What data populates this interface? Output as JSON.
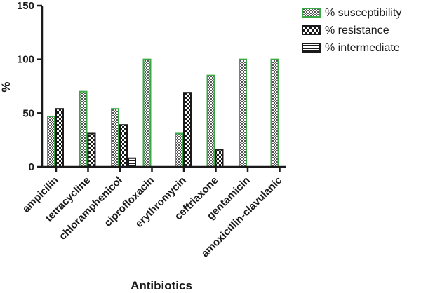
{
  "chart_data": {
    "type": "bar",
    "xlabel": "Antibiotics",
    "ylabel": "%",
    "ylim": [
      0,
      150
    ],
    "yticks": [
      0,
      50,
      100,
      150
    ],
    "grid": false,
    "legend_position": "top-right",
    "categories": [
      "ampicilin",
      "tetracycline",
      "chloramphenicol",
      "ciprofloxacin",
      "erythromycin",
      "ceftriaxone",
      "gentamicin",
      "amoxicillin-clavulanic"
    ],
    "series": [
      {
        "name": "% susceptibility",
        "color": "#3aa845",
        "pattern": "checker-green",
        "values": [
          47,
          70,
          54,
          100,
          31,
          85,
          100,
          100
        ]
      },
      {
        "name": "% resistance",
        "color": "#1a1a1a",
        "pattern": "checker-dark",
        "values": [
          54,
          31,
          39,
          0,
          69,
          16,
          0,
          0
        ]
      },
      {
        "name": "% intermediate",
        "color": "#1a1a1a",
        "pattern": "stripes",
        "values": [
          0,
          0,
          8,
          0,
          0,
          0,
          0,
          0
        ]
      }
    ]
  }
}
